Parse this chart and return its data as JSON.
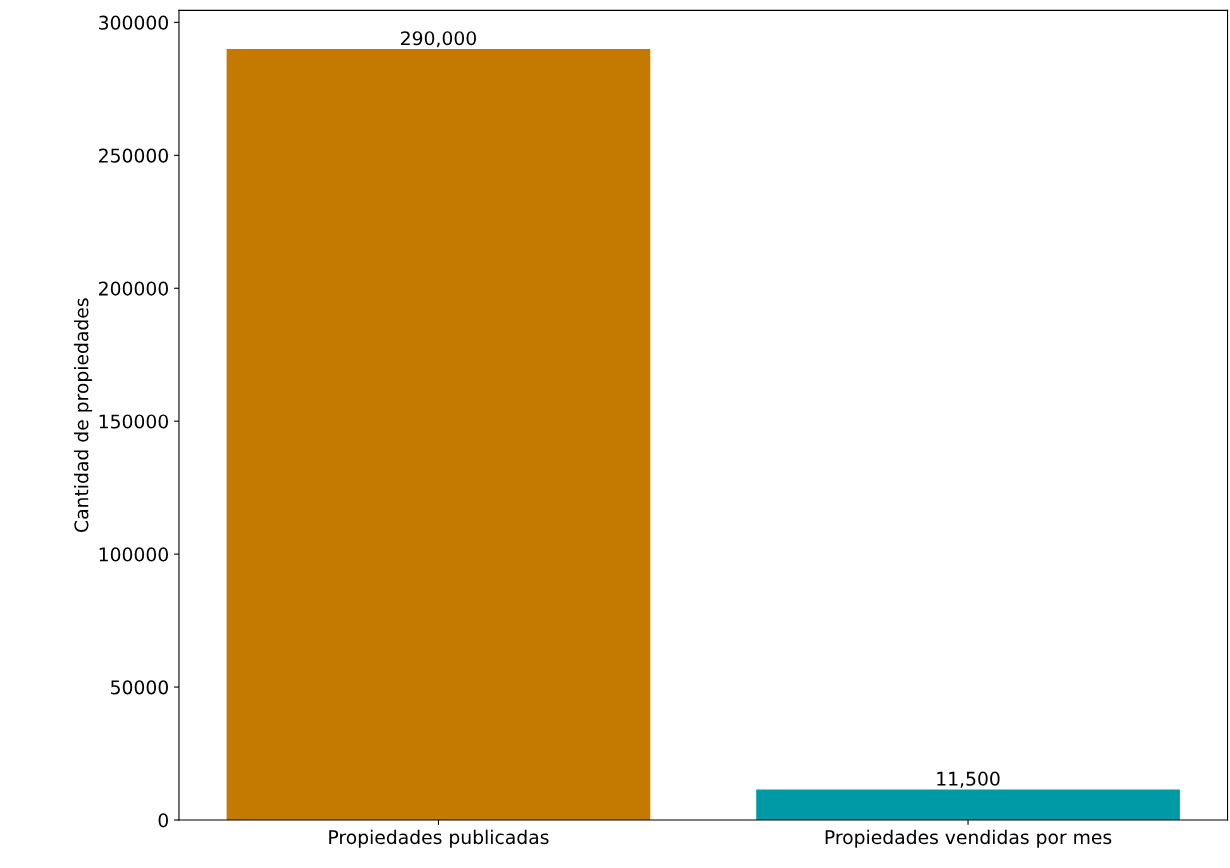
{
  "chart_data": {
    "type": "bar",
    "ylabel": "Cantidad de propiedades",
    "categories": [
      "Propiedades publicadas",
      "Propiedades vendidas por mes"
    ],
    "values": [
      290000,
      11500
    ],
    "colors": [
      "#c47a00",
      "#009aa6"
    ],
    "value_labels": [
      "290,000",
      "11,500"
    ],
    "ylim": [
      0,
      304500
    ],
    "yticks": [
      0,
      50000,
      100000,
      150000,
      200000,
      250000,
      300000
    ],
    "grid": false
  }
}
